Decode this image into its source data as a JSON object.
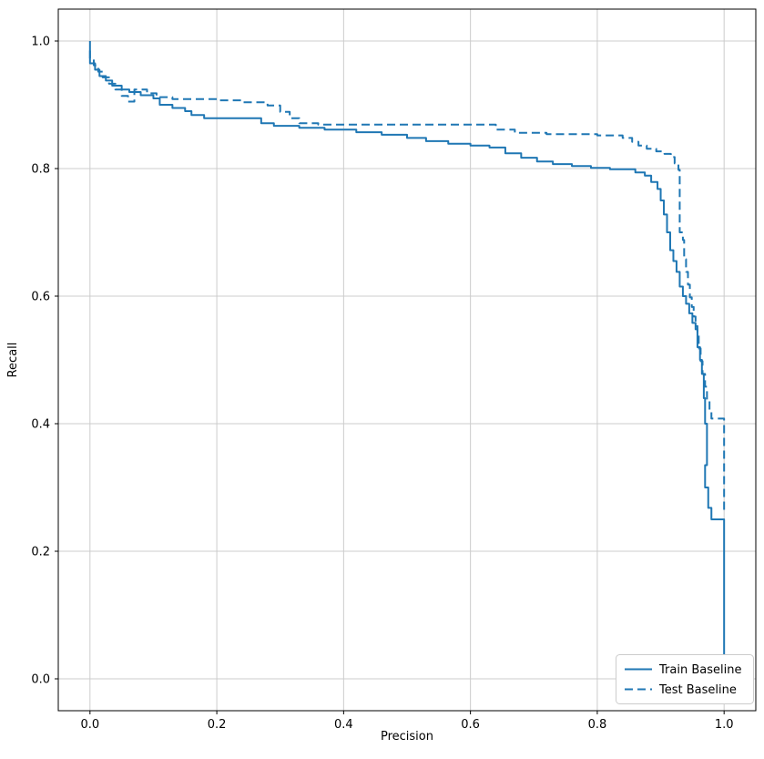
{
  "figure": {
    "background": "#ffffff"
  },
  "chart_data": {
    "type": "line",
    "title": "",
    "xlabel": "Precision",
    "ylabel": "Recall",
    "xlim": [
      -0.05,
      1.05
    ],
    "ylim": [
      -0.05,
      1.05
    ],
    "xticks": [
      0.0,
      0.2,
      0.4,
      0.6,
      0.8,
      1.0
    ],
    "yticks": [
      0.0,
      0.2,
      0.4,
      0.6,
      0.8,
      1.0
    ],
    "grid": true,
    "grid_color": "#cccccc",
    "spine_color": "#000000",
    "legend_position": "lower right",
    "accent_color": "#1f77b4",
    "series": [
      {
        "name": "Train Baseline",
        "style": "solid",
        "color": "#1f77b4",
        "points": [
          [
            0.0,
            1.0
          ],
          [
            0.0,
            0.965
          ],
          [
            0.008,
            0.965
          ],
          [
            0.008,
            0.955
          ],
          [
            0.015,
            0.955
          ],
          [
            0.015,
            0.945
          ],
          [
            0.025,
            0.945
          ],
          [
            0.025,
            0.938
          ],
          [
            0.035,
            0.938
          ],
          [
            0.035,
            0.93
          ],
          [
            0.05,
            0.93
          ],
          [
            0.05,
            0.924
          ],
          [
            0.062,
            0.924
          ],
          [
            0.062,
            0.92
          ],
          [
            0.08,
            0.92
          ],
          [
            0.08,
            0.915
          ],
          [
            0.1,
            0.915
          ],
          [
            0.1,
            0.91
          ],
          [
            0.11,
            0.91
          ],
          [
            0.11,
            0.9
          ],
          [
            0.13,
            0.9
          ],
          [
            0.13,
            0.895
          ],
          [
            0.15,
            0.895
          ],
          [
            0.15,
            0.89
          ],
          [
            0.16,
            0.89
          ],
          [
            0.16,
            0.884
          ],
          [
            0.18,
            0.884
          ],
          [
            0.18,
            0.879
          ],
          [
            0.27,
            0.879
          ],
          [
            0.27,
            0.871
          ],
          [
            0.29,
            0.871
          ],
          [
            0.29,
            0.867
          ],
          [
            0.33,
            0.867
          ],
          [
            0.33,
            0.864
          ],
          [
            0.37,
            0.864
          ],
          [
            0.37,
            0.861
          ],
          [
            0.42,
            0.861
          ],
          [
            0.42,
            0.857
          ],
          [
            0.46,
            0.857
          ],
          [
            0.46,
            0.853
          ],
          [
            0.5,
            0.853
          ],
          [
            0.5,
            0.848
          ],
          [
            0.53,
            0.848
          ],
          [
            0.53,
            0.843
          ],
          [
            0.565,
            0.843
          ],
          [
            0.565,
            0.839
          ],
          [
            0.6,
            0.839
          ],
          [
            0.6,
            0.836
          ],
          [
            0.63,
            0.836
          ],
          [
            0.63,
            0.833
          ],
          [
            0.655,
            0.833
          ],
          [
            0.655,
            0.824
          ],
          [
            0.68,
            0.824
          ],
          [
            0.68,
            0.817
          ],
          [
            0.705,
            0.817
          ],
          [
            0.705,
            0.811
          ],
          [
            0.73,
            0.811
          ],
          [
            0.73,
            0.807
          ],
          [
            0.76,
            0.807
          ],
          [
            0.76,
            0.804
          ],
          [
            0.79,
            0.804
          ],
          [
            0.79,
            0.801
          ],
          [
            0.82,
            0.801
          ],
          [
            0.82,
            0.799
          ],
          [
            0.86,
            0.799
          ],
          [
            0.86,
            0.794
          ],
          [
            0.875,
            0.794
          ],
          [
            0.875,
            0.789
          ],
          [
            0.885,
            0.789
          ],
          [
            0.885,
            0.779
          ],
          [
            0.895,
            0.779
          ],
          [
            0.895,
            0.768
          ],
          [
            0.9,
            0.768
          ],
          [
            0.9,
            0.75
          ],
          [
            0.905,
            0.75
          ],
          [
            0.905,
            0.728
          ],
          [
            0.91,
            0.728
          ],
          [
            0.91,
            0.7
          ],
          [
            0.915,
            0.7
          ],
          [
            0.915,
            0.672
          ],
          [
            0.92,
            0.672
          ],
          [
            0.92,
            0.655
          ],
          [
            0.925,
            0.655
          ],
          [
            0.925,
            0.638
          ],
          [
            0.93,
            0.638
          ],
          [
            0.93,
            0.615
          ],
          [
            0.935,
            0.615
          ],
          [
            0.935,
            0.6
          ],
          [
            0.94,
            0.6
          ],
          [
            0.94,
            0.588
          ],
          [
            0.945,
            0.588
          ],
          [
            0.945,
            0.573
          ],
          [
            0.95,
            0.573
          ],
          [
            0.95,
            0.558
          ],
          [
            0.955,
            0.558
          ],
          [
            0.955,
            0.548
          ],
          [
            0.958,
            0.548
          ],
          [
            0.958,
            0.52
          ],
          [
            0.962,
            0.52
          ],
          [
            0.962,
            0.5
          ],
          [
            0.965,
            0.5
          ],
          [
            0.965,
            0.478
          ],
          [
            0.968,
            0.478
          ],
          [
            0.968,
            0.44
          ],
          [
            0.97,
            0.44
          ],
          [
            0.97,
            0.4
          ],
          [
            0.973,
            0.4
          ],
          [
            0.973,
            0.335
          ],
          [
            0.97,
            0.335
          ],
          [
            0.97,
            0.3
          ],
          [
            0.975,
            0.3
          ],
          [
            0.975,
            0.268
          ],
          [
            0.98,
            0.268
          ],
          [
            0.98,
            0.25
          ],
          [
            1.0,
            0.25
          ],
          [
            1.0,
            0.03
          ]
        ]
      },
      {
        "name": "Test Baseline",
        "style": "dashed",
        "color": "#1f77b4",
        "points": [
          [
            0.0,
            0.985
          ],
          [
            0.0,
            0.973
          ],
          [
            0.006,
            0.973
          ],
          [
            0.006,
            0.962
          ],
          [
            0.013,
            0.962
          ],
          [
            0.013,
            0.952
          ],
          [
            0.02,
            0.952
          ],
          [
            0.02,
            0.943
          ],
          [
            0.03,
            0.943
          ],
          [
            0.03,
            0.933
          ],
          [
            0.04,
            0.933
          ],
          [
            0.04,
            0.924
          ],
          [
            0.05,
            0.924
          ],
          [
            0.05,
            0.914
          ],
          [
            0.06,
            0.914
          ],
          [
            0.06,
            0.905
          ],
          [
            0.07,
            0.905
          ],
          [
            0.07,
            0.924
          ],
          [
            0.09,
            0.924
          ],
          [
            0.09,
            0.918
          ],
          [
            0.105,
            0.918
          ],
          [
            0.105,
            0.912
          ],
          [
            0.13,
            0.912
          ],
          [
            0.13,
            0.909
          ],
          [
            0.2,
            0.909
          ],
          [
            0.2,
            0.907
          ],
          [
            0.24,
            0.907
          ],
          [
            0.24,
            0.904
          ],
          [
            0.28,
            0.904
          ],
          [
            0.28,
            0.899
          ],
          [
            0.3,
            0.899
          ],
          [
            0.3,
            0.889
          ],
          [
            0.315,
            0.889
          ],
          [
            0.315,
            0.879
          ],
          [
            0.33,
            0.879
          ],
          [
            0.33,
            0.871
          ],
          [
            0.36,
            0.871
          ],
          [
            0.36,
            0.869
          ],
          [
            0.64,
            0.869
          ],
          [
            0.64,
            0.861
          ],
          [
            0.67,
            0.861
          ],
          [
            0.67,
            0.856
          ],
          [
            0.72,
            0.856
          ],
          [
            0.72,
            0.854
          ],
          [
            0.8,
            0.854
          ],
          [
            0.8,
            0.852
          ],
          [
            0.84,
            0.852
          ],
          [
            0.84,
            0.848
          ],
          [
            0.855,
            0.848
          ],
          [
            0.855,
            0.842
          ],
          [
            0.865,
            0.842
          ],
          [
            0.865,
            0.836
          ],
          [
            0.878,
            0.836
          ],
          [
            0.878,
            0.831
          ],
          [
            0.893,
            0.831
          ],
          [
            0.893,
            0.827
          ],
          [
            0.906,
            0.827
          ],
          [
            0.906,
            0.823
          ],
          [
            0.916,
            0.823
          ],
          [
            0.916,
            0.818
          ],
          [
            0.922,
            0.818
          ],
          [
            0.922,
            0.808
          ],
          [
            0.928,
            0.808
          ],
          [
            0.928,
            0.798
          ],
          [
            0.93,
            0.798
          ],
          [
            0.93,
            0.7
          ],
          [
            0.935,
            0.7
          ],
          [
            0.935,
            0.688
          ],
          [
            0.937,
            0.688
          ],
          [
            0.937,
            0.658
          ],
          [
            0.94,
            0.658
          ],
          [
            0.94,
            0.638
          ],
          [
            0.943,
            0.638
          ],
          [
            0.943,
            0.618
          ],
          [
            0.946,
            0.618
          ],
          [
            0.946,
            0.598
          ],
          [
            0.949,
            0.598
          ],
          [
            0.949,
            0.583
          ],
          [
            0.952,
            0.583
          ],
          [
            0.952,
            0.568
          ],
          [
            0.955,
            0.568
          ],
          [
            0.955,
            0.553
          ],
          [
            0.958,
            0.553
          ],
          [
            0.958,
            0.543
          ],
          [
            0.96,
            0.543
          ],
          [
            0.96,
            0.518
          ],
          [
            0.963,
            0.518
          ],
          [
            0.963,
            0.498
          ],
          [
            0.966,
            0.498
          ],
          [
            0.966,
            0.478
          ],
          [
            0.97,
            0.478
          ],
          [
            0.97,
            0.458
          ],
          [
            0.973,
            0.458
          ],
          [
            0.973,
            0.438
          ],
          [
            0.977,
            0.438
          ],
          [
            0.977,
            0.418
          ],
          [
            0.98,
            0.418
          ],
          [
            0.98,
            0.408
          ],
          [
            1.0,
            0.408
          ],
          [
            1.0,
            0.26
          ]
        ]
      }
    ]
  }
}
